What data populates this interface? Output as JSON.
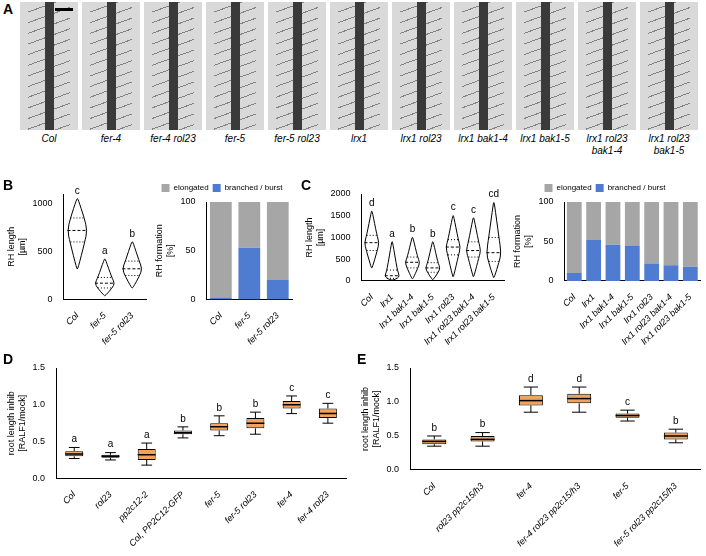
{
  "panel_A": {
    "panel_label": "A",
    "labels": [
      "Col",
      "fer-4",
      "fer-4 rol23",
      "fer-5",
      "fer-5 rol23",
      "lrx1",
      "lrx1 rol23",
      "lrx1 bak1-4",
      "lrx1 bak1-5",
      "lrx1 rol23 bak1-4",
      "lrx1 rol23 bak1-5"
    ]
  },
  "chart_data": [
    {
      "panel_label": "B",
      "type": "violin",
      "categories": [
        "Col",
        "fer-5",
        "fer-5 rol23"
      ],
      "distributions": [
        {
          "min": 320,
          "q1": 600,
          "median": 720,
          "q3": 850,
          "max": 1050
        },
        {
          "min": 40,
          "q1": 120,
          "median": 170,
          "q3": 230,
          "max": 420
        },
        {
          "min": 120,
          "q1": 250,
          "median": 320,
          "q3": 400,
          "max": 600
        }
      ],
      "annotations": [
        "c",
        "a",
        "b"
      ],
      "color": "#000000",
      "y_label": "RH length [µm]",
      "ylim": [
        0,
        1100
      ],
      "yticks": [
        0,
        500,
        1000
      ],
      "grid": false
    },
    {
      "type": "bar",
      "stacked": true,
      "categories": [
        "Col",
        "fer-5",
        "fer-5 rol23"
      ],
      "series": [
        {
          "name": "branched / burst",
          "color": "#4f7bd0",
          "values": [
            2,
            53,
            20
          ]
        },
        {
          "name": "elongated",
          "color": "#a6a6a6",
          "values": [
            98,
            47,
            80
          ]
        }
      ],
      "y_label": "RH formation [%]",
      "ylim": [
        0,
        100
      ],
      "yticks": [
        0,
        50,
        100
      ],
      "legend": "top",
      "grid": false
    },
    {
      "panel_label": "C",
      "type": "violin",
      "categories": [
        "Col",
        "lrx1",
        "lrx1 bak1-4",
        "lrx1 bak1-5",
        "lrx1 rol23",
        "lrx1 rol23 bak1-4",
        "lrx1 rol23 bak1-5"
      ],
      "distributions": [
        {
          "min": 300,
          "q1": 700,
          "median": 880,
          "q3": 1050,
          "max": 1600
        },
        {
          "min": 20,
          "q1": 60,
          "median": 120,
          "q3": 250,
          "max": 900
        },
        {
          "min": 50,
          "q1": 300,
          "median": 430,
          "q3": 550,
          "max": 1000
        },
        {
          "min": 30,
          "q1": 200,
          "median": 300,
          "q3": 420,
          "max": 900
        },
        {
          "min": 100,
          "q1": 600,
          "median": 780,
          "q3": 950,
          "max": 1500
        },
        {
          "min": 100,
          "q1": 550,
          "median": 700,
          "q3": 900,
          "max": 1450
        },
        {
          "min": 80,
          "q1": 450,
          "median": 650,
          "q3": 1000,
          "max": 1800
        }
      ],
      "annotations": [
        "d",
        "a",
        "b",
        "b",
        "c",
        "c",
        "cd"
      ],
      "color": "#000000",
      "y_label": "RH length [µm]",
      "ylim": [
        0,
        2000
      ],
      "yticks": [
        0,
        500,
        1000,
        1500,
        2000
      ],
      "grid": false
    },
    {
      "type": "bar",
      "stacked": true,
      "categories": [
        "Col",
        "lrx1",
        "lrx1 bak1-4",
        "lrx1 bak1-5",
        "lrx1 rol23",
        "lrx1 rol23 bak1-4",
        "lrx1 rol23 bak1-5"
      ],
      "series": [
        {
          "name": "branched / burst",
          "color": "#4f7bd0",
          "values": [
            10,
            52,
            46,
            45,
            22,
            20,
            18
          ]
        },
        {
          "name": "elongated",
          "color": "#a6a6a6",
          "values": [
            90,
            48,
            54,
            55,
            78,
            80,
            82
          ]
        }
      ],
      "y_label": "RH formation [%]",
      "ylim": [
        0,
        100
      ],
      "yticks": [
        0,
        50,
        100
      ],
      "legend": "top",
      "grid": false
    },
    {
      "panel_label": "D",
      "type": "box",
      "categories": [
        "Col",
        "rol23",
        "pp2c12-2",
        "Col, PP2C12-GFP",
        "fer-5",
        "fer-5 rol23",
        "fer-4",
        "fer-4 rol23"
      ],
      "distributions": [
        {
          "min": 0.27,
          "q1": 0.3,
          "median": 0.33,
          "q3": 0.37,
          "max": 0.42
        },
        {
          "min": 0.25,
          "q1": 0.28,
          "median": 0.3,
          "q3": 0.32,
          "max": 0.35
        },
        {
          "min": 0.18,
          "q1": 0.25,
          "median": 0.32,
          "q3": 0.4,
          "max": 0.48
        },
        {
          "min": 0.55,
          "q1": 0.6,
          "median": 0.62,
          "q3": 0.65,
          "max": 0.7
        },
        {
          "min": 0.58,
          "q1": 0.65,
          "median": 0.7,
          "q3": 0.75,
          "max": 0.85
        },
        {
          "min": 0.6,
          "q1": 0.68,
          "median": 0.75,
          "q3": 0.82,
          "max": 0.9
        },
        {
          "min": 0.88,
          "q1": 0.95,
          "median": 1.0,
          "q3": 1.05,
          "max": 1.12
        },
        {
          "min": 0.75,
          "q1": 0.82,
          "median": 0.88,
          "q3": 0.95,
          "max": 1.02
        }
      ],
      "annotations": [
        "a",
        "a",
        "a",
        "b",
        "b",
        "b",
        "c",
        "c"
      ],
      "color": "#f4a259",
      "y_label": "root length inhib [RALF1/mock]",
      "ylim": [
        0,
        1.5
      ],
      "yticks": [
        {
          "value": 0,
          "label": "0.0"
        },
        {
          "value": 0.5,
          "label": "0.5"
        },
        {
          "value": 1,
          "label": "1.0"
        },
        {
          "value": 1.5,
          "label": "1.5"
        }
      ],
      "grid": false
    },
    {
      "panel_label": "E",
      "type": "box",
      "categories": [
        "Col",
        "rol23 pp2c15/h3",
        "fer-4",
        "fer-4 rol23 pp2c15/h3",
        "fer-5",
        "fer-5 rol23 pp2c15/h3"
      ],
      "distributions": [
        {
          "min": 0.35,
          "q1": 0.38,
          "median": 0.42,
          "q3": 0.45,
          "max": 0.5
        },
        {
          "min": 0.35,
          "q1": 0.42,
          "median": 0.45,
          "q3": 0.5,
          "max": 0.55
        },
        {
          "min": 0.85,
          "q1": 0.95,
          "median": 1.02,
          "q3": 1.1,
          "max": 1.22
        },
        {
          "min": 0.85,
          "q1": 0.98,
          "median": 1.05,
          "q3": 1.12,
          "max": 1.22
        },
        {
          "min": 0.72,
          "q1": 0.77,
          "median": 0.8,
          "q3": 0.83,
          "max": 0.88
        },
        {
          "min": 0.4,
          "q1": 0.45,
          "median": 0.5,
          "q3": 0.55,
          "max": 0.6
        }
      ],
      "annotations": [
        "b",
        "b",
        "d",
        "d",
        "c",
        "b"
      ],
      "color": "#f4a259",
      "y_label": "root length inhib [RALF1/mock]",
      "ylim": [
        0,
        1.5
      ],
      "yticks": [
        {
          "value": 0,
          "label": "0.0"
        },
        {
          "value": 0.5,
          "label": "0.5"
        },
        {
          "value": 1,
          "label": "1.0"
        },
        {
          "value": 1.5,
          "label": "1.5"
        }
      ],
      "grid": false
    }
  ]
}
